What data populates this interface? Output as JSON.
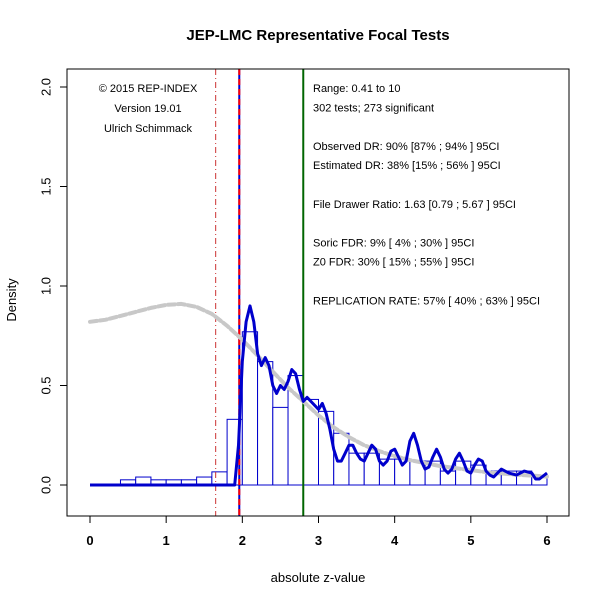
{
  "chart_data": {
    "type": "bar",
    "title": "JEP-LMC Representative Focal Tests",
    "xlabel": "absolute z-value",
    "ylabel": "Density",
    "xlim": [
      0,
      6
    ],
    "ylim": [
      0,
      2.0
    ],
    "x_ticks": [
      "0",
      "1",
      "2",
      "3",
      "4",
      "5",
      "6"
    ],
    "y_ticks": [
      "0.0",
      "0.5",
      "1.0",
      "1.5",
      "2.0"
    ],
    "bin_width": 0.2,
    "bins": [
      {
        "x0": 0.0,
        "y": 0.0
      },
      {
        "x0": 0.2,
        "y": 0.0
      },
      {
        "x0": 0.4,
        "y": 0.026
      },
      {
        "x0": 0.6,
        "y": 0.04
      },
      {
        "x0": 0.8,
        "y": 0.026
      },
      {
        "x0": 1.0,
        "y": 0.026
      },
      {
        "x0": 1.2,
        "y": 0.026
      },
      {
        "x0": 1.4,
        "y": 0.04
      },
      {
        "x0": 1.6,
        "y": 0.066
      },
      {
        "x0": 1.8,
        "y": 0.33
      },
      {
        "x0": 2.0,
        "y": 0.77
      },
      {
        "x0": 2.2,
        "y": 0.62
      },
      {
        "x0": 2.4,
        "y": 0.39
      },
      {
        "x0": 2.6,
        "y": 0.55
      },
      {
        "x0": 2.8,
        "y": 0.43
      },
      {
        "x0": 3.0,
        "y": 0.37
      },
      {
        "x0": 3.2,
        "y": 0.26
      },
      {
        "x0": 3.4,
        "y": 0.16
      },
      {
        "x0": 3.6,
        "y": 0.16
      },
      {
        "x0": 3.8,
        "y": 0.13
      },
      {
        "x0": 4.0,
        "y": 0.13
      },
      {
        "x0": 4.2,
        "y": 0.12
      },
      {
        "x0": 4.4,
        "y": 0.12
      },
      {
        "x0": 4.6,
        "y": 0.07
      },
      {
        "x0": 4.8,
        "y": 0.12
      },
      {
        "x0": 5.0,
        "y": 0.1
      },
      {
        "x0": 5.2,
        "y": 0.07
      },
      {
        "x0": 5.4,
        "y": 0.07
      },
      {
        "x0": 5.6,
        "y": 0.07
      },
      {
        "x0": 5.8,
        "y": 0.04
      }
    ],
    "kernel_density": {
      "color": "#0000cc",
      "points": [
        [
          0.0,
          0.0
        ],
        [
          1.9,
          0.0
        ],
        [
          1.95,
          0.2
        ],
        [
          2.0,
          0.62
        ],
        [
          2.05,
          0.82
        ],
        [
          2.1,
          0.9
        ],
        [
          2.15,
          0.82
        ],
        [
          2.2,
          0.66
        ],
        [
          2.25,
          0.6
        ],
        [
          2.3,
          0.64
        ],
        [
          2.35,
          0.6
        ],
        [
          2.4,
          0.5
        ],
        [
          2.45,
          0.46
        ],
        [
          2.5,
          0.5
        ],
        [
          2.55,
          0.48
        ],
        [
          2.6,
          0.52
        ],
        [
          2.65,
          0.58
        ],
        [
          2.7,
          0.56
        ],
        [
          2.75,
          0.48
        ],
        [
          2.8,
          0.42
        ],
        [
          2.85,
          0.44
        ],
        [
          2.9,
          0.42
        ],
        [
          2.95,
          0.4
        ],
        [
          3.0,
          0.38
        ],
        [
          3.05,
          0.41
        ],
        [
          3.1,
          0.36
        ],
        [
          3.15,
          0.28
        ],
        [
          3.2,
          0.18
        ],
        [
          3.25,
          0.12
        ],
        [
          3.3,
          0.12
        ],
        [
          3.35,
          0.16
        ],
        [
          3.4,
          0.2
        ],
        [
          3.45,
          0.2
        ],
        [
          3.5,
          0.16
        ],
        [
          3.55,
          0.13
        ],
        [
          3.6,
          0.12
        ],
        [
          3.65,
          0.16
        ],
        [
          3.7,
          0.2
        ],
        [
          3.75,
          0.18
        ],
        [
          3.8,
          0.12
        ],
        [
          3.85,
          0.1
        ],
        [
          3.9,
          0.12
        ],
        [
          3.95,
          0.17
        ],
        [
          4.0,
          0.18
        ],
        [
          4.05,
          0.14
        ],
        [
          4.1,
          0.1
        ],
        [
          4.15,
          0.12
        ],
        [
          4.2,
          0.22
        ],
        [
          4.25,
          0.26
        ],
        [
          4.3,
          0.2
        ],
        [
          4.35,
          0.12
        ],
        [
          4.4,
          0.08
        ],
        [
          4.45,
          0.09
        ],
        [
          4.5,
          0.14
        ],
        [
          4.55,
          0.18
        ],
        [
          4.6,
          0.14
        ],
        [
          4.65,
          0.08
        ],
        [
          4.7,
          0.06
        ],
        [
          4.75,
          0.08
        ],
        [
          4.8,
          0.13
        ],
        [
          4.85,
          0.16
        ],
        [
          4.9,
          0.12
        ],
        [
          4.95,
          0.07
        ],
        [
          5.0,
          0.06
        ],
        [
          5.05,
          0.1
        ],
        [
          5.1,
          0.13
        ],
        [
          5.15,
          0.12
        ],
        [
          5.2,
          0.07
        ],
        [
          5.25,
          0.05
        ],
        [
          5.3,
          0.04
        ],
        [
          5.35,
          0.06
        ],
        [
          5.4,
          0.08
        ],
        [
          5.5,
          0.06
        ],
        [
          5.6,
          0.05
        ],
        [
          5.7,
          0.07
        ],
        [
          5.8,
          0.06
        ],
        [
          5.85,
          0.03
        ],
        [
          5.9,
          0.03
        ],
        [
          6.0,
          0.06
        ]
      ]
    },
    "fitted_density": {
      "color": "#c8c8c8",
      "points": [
        [
          0.0,
          0.82
        ],
        [
          0.2,
          0.83
        ],
        [
          0.4,
          0.85
        ],
        [
          0.6,
          0.87
        ],
        [
          0.8,
          0.89
        ],
        [
          1.0,
          0.905
        ],
        [
          1.2,
          0.91
        ],
        [
          1.4,
          0.895
        ],
        [
          1.6,
          0.86
        ],
        [
          1.8,
          0.8
        ],
        [
          2.0,
          0.73
        ],
        [
          2.2,
          0.65
        ],
        [
          2.4,
          0.57
        ],
        [
          2.6,
          0.49
        ],
        [
          2.8,
          0.42
        ],
        [
          3.0,
          0.35
        ],
        [
          3.2,
          0.29
        ],
        [
          3.4,
          0.24
        ],
        [
          3.6,
          0.2
        ],
        [
          3.8,
          0.17
        ],
        [
          4.0,
          0.145
        ],
        [
          4.2,
          0.125
        ],
        [
          4.4,
          0.11
        ],
        [
          4.6,
          0.095
        ],
        [
          4.8,
          0.085
        ],
        [
          5.0,
          0.075
        ],
        [
          5.2,
          0.065
        ],
        [
          5.4,
          0.058
        ],
        [
          5.6,
          0.052
        ],
        [
          5.8,
          0.047
        ],
        [
          6.0,
          0.042
        ]
      ]
    },
    "vertical_lines": [
      {
        "x": 1.65,
        "color": "#cc3333",
        "style": "dashdot"
      },
      {
        "x": 1.96,
        "color": "#0000cc",
        "style": "solid"
      },
      {
        "x": 1.96,
        "color": "#ff0000",
        "style": "dashed"
      },
      {
        "x": 2.8,
        "color": "#006600",
        "style": "solid"
      }
    ],
    "annotations_left": [
      "© 2015 REP-INDEX",
      "Version 19.01",
      "Ulrich Schimmack"
    ],
    "annotations_right": [
      "Range: 0.41 to 10",
      "302 tests; 273 significant",
      "",
      "Observed DR: 90% [87% ; 94% ] 95CI",
      "Estimated DR: 38% [15% ; 56% ] 95CI",
      "",
      "File Drawer Ratio: 1.63 [0.79 ; 5.67 ] 95CI",
      "",
      "Soric FDR: 9% [ 4% ; 30% ] 95CI",
      "Z0 FDR: 30% [ 15% ; 55% ] 95CI",
      "",
      "REPLICATION RATE: 57% [ 40% ; 63% ] 95CI"
    ],
    "colors": {
      "bar_stroke": "#0000cc",
      "bar_fill": "#ffffff",
      "axis": "#000000"
    }
  }
}
